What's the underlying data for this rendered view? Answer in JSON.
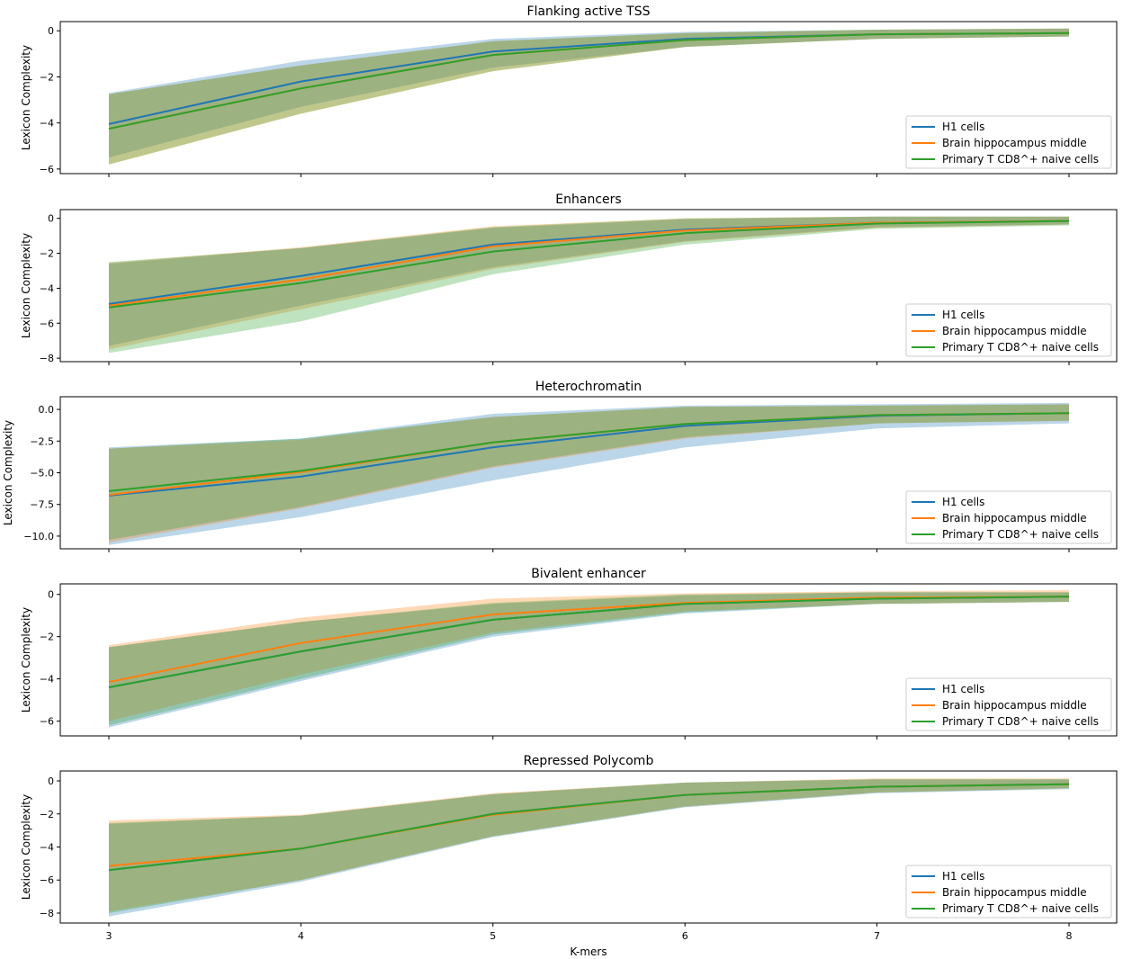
{
  "figure": {
    "xlabel": "K-mers",
    "x_ticks": [
      "3",
      "4",
      "5",
      "6",
      "7",
      "8"
    ]
  },
  "colors": {
    "h1": "#1f77b4",
    "brain": "#ff7f0e",
    "tcell": "#2ca02c"
  },
  "chart_data": [
    {
      "type": "line",
      "title": "Flanking active TSS",
      "ylabel": "Lexicon Complexity",
      "x": [
        3,
        4,
        5,
        6,
        7,
        8
      ],
      "ylim": [
        -6.2,
        0.4
      ],
      "yticks": [
        0,
        -2,
        -4,
        -6
      ],
      "yticklabels": [
        "0",
        "−2",
        "−4",
        "−6"
      ],
      "legend": "lower-right",
      "series": [
        {
          "name": "H1 cells",
          "values": [
            -4.05,
            -2.2,
            -0.9,
            -0.35,
            -0.15,
            -0.1
          ],
          "lower": [
            -5.5,
            -3.3,
            -1.6,
            -0.7,
            -0.35,
            -0.25
          ],
          "upper": [
            -2.7,
            -1.3,
            -0.35,
            -0.05,
            0.05,
            0.1
          ]
        },
        {
          "name": "Brain hippocampus middle",
          "values": [
            -4.25,
            -2.5,
            -1.05,
            -0.4,
            -0.15,
            -0.1
          ],
          "lower": [
            -5.8,
            -3.6,
            -1.75,
            -0.7,
            -0.35,
            -0.25
          ],
          "upper": [
            -2.75,
            -1.5,
            -0.45,
            -0.1,
            0.05,
            0.1
          ]
        },
        {
          "name": "Primary T CD8^+ naive cells",
          "values": [
            -4.25,
            -2.5,
            -1.05,
            -0.4,
            -0.15,
            -0.1
          ],
          "lower": [
            -5.8,
            -3.6,
            -1.75,
            -0.7,
            -0.35,
            -0.25
          ],
          "upper": [
            -2.75,
            -1.5,
            -0.45,
            -0.1,
            0.05,
            0.1
          ]
        }
      ]
    },
    {
      "type": "line",
      "title": "Enhancers",
      "ylabel": "Lexicon Complexity",
      "x": [
        3,
        4,
        5,
        6,
        7,
        8
      ],
      "ylim": [
        -8.2,
        0.5
      ],
      "yticks": [
        0,
        -2,
        -4,
        -6,
        -8
      ],
      "yticklabels": [
        "0",
        "−2",
        "−4",
        "−6",
        "−8"
      ],
      "legend": "lower-right",
      "series": [
        {
          "name": "H1 cells",
          "values": [
            -4.9,
            -3.3,
            -1.5,
            -0.65,
            -0.25,
            -0.15
          ],
          "lower": [
            -7.3,
            -5.0,
            -2.8,
            -1.3,
            -0.5,
            -0.35
          ],
          "upper": [
            -2.6,
            -1.7,
            -0.55,
            -0.05,
            0.1,
            0.1
          ]
        },
        {
          "name": "Brain hippocampus middle",
          "values": [
            -5.0,
            -3.5,
            -1.6,
            -0.7,
            -0.25,
            -0.15
          ],
          "lower": [
            -7.5,
            -5.2,
            -2.9,
            -1.35,
            -0.55,
            -0.35
          ],
          "upper": [
            -2.55,
            -1.65,
            -0.45,
            0.0,
            0.1,
            0.1
          ]
        },
        {
          "name": "Primary T CD8^+ naive cells",
          "values": [
            -5.1,
            -3.7,
            -1.9,
            -0.85,
            -0.3,
            -0.15
          ],
          "lower": [
            -7.7,
            -5.9,
            -3.2,
            -1.5,
            -0.6,
            -0.4
          ],
          "upper": [
            -2.5,
            -1.7,
            -0.5,
            0.0,
            0.1,
            0.1
          ]
        }
      ]
    },
    {
      "type": "line",
      "title": "Heterochromatin",
      "ylabel": "Lexicon Complexity",
      "x": [
        3,
        4,
        5,
        6,
        7,
        8
      ],
      "ylim": [
        -11.0,
        1.0
      ],
      "yticks": [
        0.0,
        -2.5,
        -5.0,
        -7.5,
        -10.0
      ],
      "yticklabels": [
        "0.0",
        "−2.5",
        "−5.0",
        "−7.5",
        "−10.0"
      ],
      "legend": "lower-right",
      "series": [
        {
          "name": "H1 cells",
          "values": [
            -6.8,
            -5.3,
            -3.0,
            -1.3,
            -0.5,
            -0.3
          ],
          "lower": [
            -10.7,
            -8.5,
            -5.6,
            -3.0,
            -1.5,
            -1.1
          ],
          "upper": [
            -3.0,
            -2.3,
            -0.35,
            0.3,
            0.4,
            0.5
          ]
        },
        {
          "name": "Brain hippocampus middle",
          "values": [
            -6.75,
            -4.95,
            -2.6,
            -1.15,
            -0.45,
            -0.3
          ],
          "lower": [
            -10.5,
            -7.8,
            -4.6,
            -2.3,
            -1.1,
            -0.9
          ],
          "upper": [
            -3.1,
            -2.4,
            -0.6,
            0.2,
            0.3,
            0.4
          ]
        },
        {
          "name": "Primary T CD8^+ naive cells",
          "values": [
            -6.45,
            -4.85,
            -2.6,
            -1.15,
            -0.45,
            -0.3
          ],
          "lower": [
            -10.3,
            -7.7,
            -4.5,
            -2.2,
            -1.1,
            -0.9
          ],
          "upper": [
            -3.1,
            -2.3,
            -0.6,
            0.2,
            0.3,
            0.4
          ]
        }
      ]
    },
    {
      "type": "line",
      "title": "Bivalent enhancer",
      "ylabel": "Lexicon Complexity",
      "x": [
        3,
        4,
        5,
        6,
        7,
        8
      ],
      "ylim": [
        -6.7,
        0.5
      ],
      "yticks": [
        0,
        -2,
        -4,
        -6
      ],
      "yticklabels": [
        "0",
        "−2",
        "−4",
        "−6"
      ],
      "legend": "lower-right",
      "series": [
        {
          "name": "H1 cells",
          "values": [
            -4.4,
            -2.7,
            -1.2,
            -0.45,
            -0.2,
            -0.1
          ],
          "lower": [
            -6.3,
            -4.1,
            -2.0,
            -0.9,
            -0.45,
            -0.35
          ],
          "upper": [
            -2.5,
            -1.3,
            -0.45,
            -0.05,
            0.1,
            0.1
          ]
        },
        {
          "name": "Brain hippocampus middle",
          "values": [
            -4.15,
            -2.3,
            -0.95,
            -0.4,
            -0.15,
            -0.1
          ],
          "lower": [
            -6.0,
            -3.8,
            -1.8,
            -0.8,
            -0.45,
            -0.35
          ],
          "upper": [
            -2.4,
            -1.1,
            -0.2,
            0.05,
            0.15,
            0.2
          ]
        },
        {
          "name": "Primary T CD8^+ naive cells",
          "values": [
            -4.4,
            -2.7,
            -1.2,
            -0.45,
            -0.2,
            -0.1
          ],
          "lower": [
            -6.2,
            -4.0,
            -1.9,
            -0.85,
            -0.45,
            -0.35
          ],
          "upper": [
            -2.5,
            -1.3,
            -0.4,
            0.0,
            0.1,
            0.1
          ]
        }
      ]
    },
    {
      "type": "line",
      "title": "Repressed Polycomb",
      "ylabel": "Lexicon Complexity",
      "x": [
        3,
        4,
        5,
        6,
        7,
        8
      ],
      "ylim": [
        -8.6,
        0.6
      ],
      "yticks": [
        0,
        -2,
        -4,
        -6,
        -8
      ],
      "yticklabels": [
        "0",
        "−2",
        "−4",
        "−6",
        "−8"
      ],
      "legend": "lower-right",
      "series": [
        {
          "name": "H1 cells",
          "values": [
            -5.4,
            -4.1,
            -2.0,
            -0.85,
            -0.35,
            -0.2
          ],
          "lower": [
            -8.2,
            -6.1,
            -3.4,
            -1.6,
            -0.75,
            -0.5
          ],
          "upper": [
            -2.6,
            -2.1,
            -0.8,
            -0.1,
            0.1,
            0.1
          ]
        },
        {
          "name": "Brain hippocampus middle",
          "values": [
            -5.15,
            -4.1,
            -2.05,
            -0.85,
            -0.35,
            -0.2
          ],
          "lower": [
            -7.9,
            -6.0,
            -3.35,
            -1.55,
            -0.7,
            -0.45
          ],
          "upper": [
            -2.4,
            -2.05,
            -0.75,
            -0.1,
            0.15,
            0.15
          ]
        },
        {
          "name": "Primary T CD8^+ naive cells",
          "values": [
            -5.4,
            -4.1,
            -2.0,
            -0.85,
            -0.35,
            -0.2
          ],
          "lower": [
            -8.0,
            -6.0,
            -3.35,
            -1.55,
            -0.7,
            -0.45
          ],
          "upper": [
            -2.55,
            -2.1,
            -0.8,
            -0.1,
            0.1,
            0.1
          ]
        }
      ]
    }
  ]
}
